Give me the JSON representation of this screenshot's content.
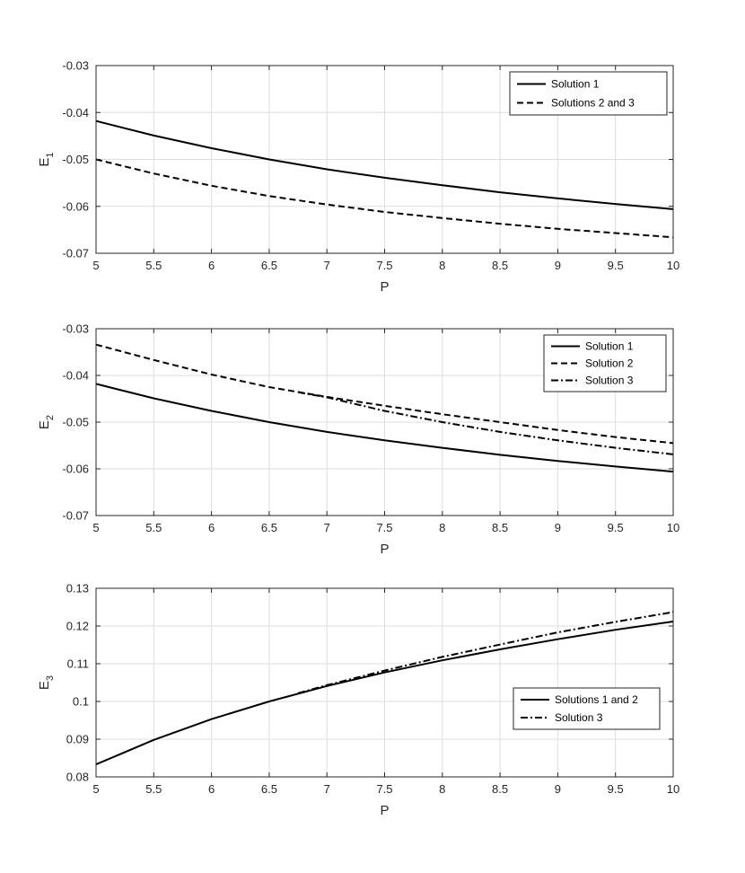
{
  "chart_data": [
    {
      "type": "line",
      "ylabel": "E",
      "ylabel_sub": "1",
      "xlabel": "P",
      "xlim": [
        5,
        10
      ],
      "ylim": [
        -0.07,
        -0.03
      ],
      "xticks": [
        5,
        5.5,
        6,
        6.5,
        7,
        7.5,
        8,
        8.5,
        9,
        9.5,
        10
      ],
      "xtick_labels": [
        "5",
        "5.5",
        "6",
        "6.5",
        "7",
        "7.5",
        "8",
        "8.5",
        "9",
        "9.5",
        "10"
      ],
      "yticks": [
        -0.07,
        -0.06,
        -0.05,
        -0.04,
        -0.03
      ],
      "ytick_labels": [
        "-0.07",
        "-0.06",
        "-0.05",
        "-0.04",
        "-0.03"
      ],
      "grid": true,
      "legend_position": "top-right",
      "x": [
        5,
        5.5,
        6,
        6.5,
        7,
        7.5,
        8,
        8.5,
        9,
        9.5,
        10
      ],
      "series": [
        {
          "name": "Solution 1",
          "style": "solid",
          "values": [
            -0.0418,
            -0.0449,
            -0.0476,
            -0.05,
            -0.0521,
            -0.0539,
            -0.0555,
            -0.057,
            -0.0583,
            -0.0595,
            -0.0606
          ]
        },
        {
          "name": "Solutions 2 and 3",
          "style": "dashed",
          "values": [
            -0.05,
            -0.053,
            -0.0556,
            -0.0578,
            -0.0596,
            -0.0612,
            -0.0625,
            -0.0637,
            -0.0648,
            -0.0657,
            -0.0666
          ]
        }
      ]
    },
    {
      "type": "line",
      "ylabel": "E",
      "ylabel_sub": "2",
      "xlabel": "P",
      "xlim": [
        5,
        10
      ],
      "ylim": [
        -0.07,
        -0.03
      ],
      "xticks": [
        5,
        5.5,
        6,
        6.5,
        7,
        7.5,
        8,
        8.5,
        9,
        9.5,
        10
      ],
      "xtick_labels": [
        "5",
        "5.5",
        "6",
        "6.5",
        "7",
        "7.5",
        "8",
        "8.5",
        "9",
        "9.5",
        "10"
      ],
      "yticks": [
        -0.07,
        -0.06,
        -0.05,
        -0.04,
        -0.03
      ],
      "ytick_labels": [
        "-0.07",
        "-0.06",
        "-0.05",
        "-0.04",
        "-0.03"
      ],
      "grid": true,
      "legend_position": "top-right",
      "x": [
        5,
        5.5,
        6,
        6.5,
        7,
        7.5,
        8,
        8.5,
        9,
        9.5,
        10
      ],
      "series": [
        {
          "name": "Solution 1",
          "style": "solid",
          "values": [
            -0.0418,
            -0.0449,
            -0.0476,
            -0.05,
            -0.0521,
            -0.0539,
            -0.0555,
            -0.057,
            -0.0583,
            -0.0595,
            -0.0606
          ]
        },
        {
          "name": "Solution 2",
          "style": "dashed",
          "values": [
            -0.0334,
            -0.0367,
            -0.0398,
            -0.0425,
            -0.0446,
            -0.0465,
            -0.0483,
            -0.05,
            -0.0517,
            -0.0532,
            -0.0545
          ]
        },
        {
          "name": "Solution 3",
          "style": "dashdot",
          "x": [
            6.75,
            7,
            7.5,
            8,
            8.5,
            9,
            9.5,
            10
          ],
          "values": [
            -0.0436,
            -0.0447,
            -0.0476,
            -0.05,
            -0.0521,
            -0.0539,
            -0.0555,
            -0.0569
          ]
        }
      ]
    },
    {
      "type": "line",
      "ylabel": "E",
      "ylabel_sub": "3",
      "xlabel": "P",
      "xlim": [
        5,
        10
      ],
      "ylim": [
        0.08,
        0.13
      ],
      "xticks": [
        5,
        5.5,
        6,
        6.5,
        7,
        7.5,
        8,
        8.5,
        9,
        9.5,
        10
      ],
      "xtick_labels": [
        "5",
        "5.5",
        "6",
        "6.5",
        "7",
        "7.5",
        "8",
        "8.5",
        "9",
        "9.5",
        "10"
      ],
      "yticks": [
        0.08,
        0.09,
        0.1,
        0.11,
        0.12,
        0.13
      ],
      "ytick_labels": [
        "0.08",
        "0.09",
        "0.1",
        "0.11",
        "0.12",
        "0.13"
      ],
      "grid": true,
      "legend_position": "center-right",
      "x": [
        5,
        5.5,
        6,
        6.5,
        7,
        7.5,
        8,
        8.5,
        9,
        9.5,
        10
      ],
      "series": [
        {
          "name": "Solutions 1 and 2",
          "style": "solid",
          "values": [
            0.0833,
            0.0898,
            0.0953,
            0.1,
            0.1041,
            0.1077,
            0.1109,
            0.1138,
            0.1165,
            0.119,
            0.1212
          ]
        },
        {
          "name": "Solution 3",
          "style": "dashdot",
          "x": [
            6.75,
            7,
            7.5,
            8,
            8.5,
            9,
            9.5,
            10
          ],
          "values": [
            0.1022,
            0.1043,
            0.1082,
            0.1118,
            0.1151,
            0.1183,
            0.1211,
            0.1237
          ]
        }
      ]
    }
  ]
}
